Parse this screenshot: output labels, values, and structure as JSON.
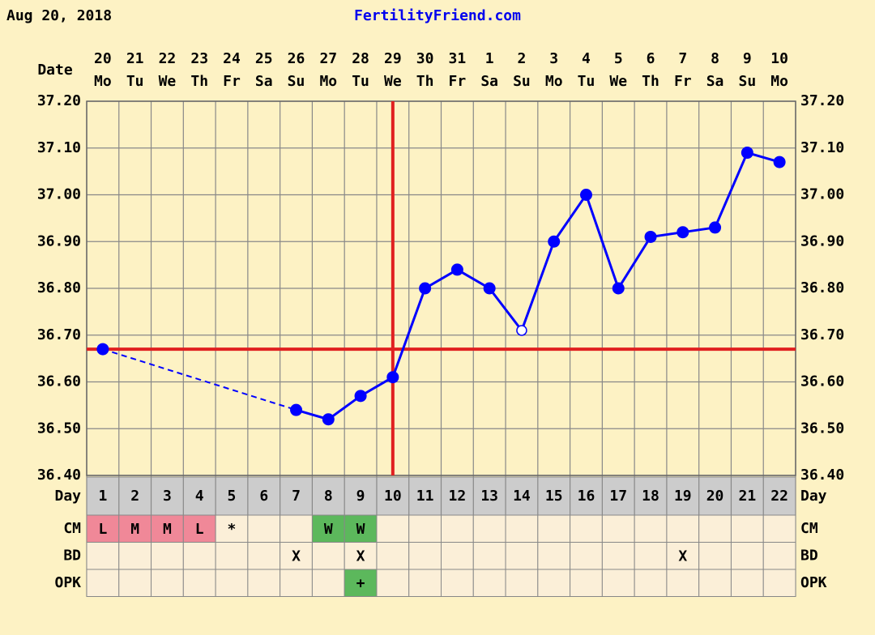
{
  "header": {
    "date": "Aug 20, 2018",
    "site": "FertilityFriend.com"
  },
  "chart_data": {
    "type": "line",
    "x_label": "Date",
    "categories": [
      "20",
      "21",
      "22",
      "23",
      "24",
      "25",
      "26",
      "27",
      "28",
      "29",
      "30",
      "31",
      "1",
      "2",
      "3",
      "4",
      "5",
      "6",
      "7",
      "8",
      "9",
      "10"
    ],
    "weekdays": [
      "Mo",
      "Tu",
      "We",
      "Th",
      "Fr",
      "Sa",
      "Su",
      "Mo",
      "Tu",
      "We",
      "Th",
      "Fr",
      "Sa",
      "Su",
      "Mo",
      "Tu",
      "We",
      "Th",
      "Fr",
      "Sa",
      "Su",
      "Mo"
    ],
    "cycle_day_label": "Day",
    "cycle_days": [
      1,
      2,
      3,
      4,
      5,
      6,
      7,
      8,
      9,
      10,
      11,
      12,
      13,
      14,
      15,
      16,
      17,
      18,
      19,
      20,
      21,
      22
    ],
    "values": [
      36.67,
      null,
      null,
      null,
      null,
      null,
      36.54,
      36.52,
      36.57,
      36.61,
      36.8,
      36.84,
      36.8,
      36.71,
      36.9,
      37.0,
      36.8,
      36.91,
      36.92,
      36.93,
      37.09,
      37.07
    ],
    "hollow": [
      13
    ],
    "color": "#0000ff",
    "coverline": 36.67,
    "ovulation_index": 9,
    "line_color": "#e02020",
    "ylim": [
      36.4,
      37.2
    ],
    "yticks": [
      {
        "value": 36.4,
        "label": "36.40"
      },
      {
        "value": 36.5,
        "label": "36.50"
      },
      {
        "value": 36.6,
        "label": "36.60"
      },
      {
        "value": 36.7,
        "label": "36.70"
      },
      {
        "value": 36.8,
        "label": "36.80"
      },
      {
        "value": 36.9,
        "label": "36.90"
      },
      {
        "value": 37.0,
        "label": "37.00"
      },
      {
        "value": 37.1,
        "label": "37.10"
      },
      {
        "value": 37.2,
        "label": "37.20"
      }
    ],
    "grid": true,
    "rows": [
      {
        "label": "CM",
        "cells": [
          "L",
          "M",
          "M",
          "L",
          "*",
          null,
          null,
          "W",
          "W",
          null,
          null,
          null,
          null,
          null,
          null,
          null,
          null,
          null,
          null,
          null,
          null,
          null
        ],
        "colors": [
          "#f08898",
          "#f08898",
          "#f08898",
          "#f08898",
          null,
          null,
          null,
          "#5cb85c",
          "#5cb85c",
          null,
          null,
          null,
          null,
          null,
          null,
          null,
          null,
          null,
          null,
          null,
          null,
          null
        ]
      },
      {
        "label": "BD",
        "cells": [
          null,
          null,
          null,
          null,
          null,
          null,
          "X",
          null,
          "X",
          null,
          null,
          null,
          null,
          null,
          null,
          null,
          null,
          null,
          "X",
          null,
          null,
          null
        ],
        "colors": [
          null,
          null,
          null,
          null,
          null,
          null,
          null,
          null,
          null,
          null,
          null,
          null,
          null,
          null,
          null,
          null,
          null,
          null,
          null,
          null,
          null,
          null
        ]
      },
      {
        "label": "OPK",
        "cells": [
          null,
          null,
          null,
          null,
          null,
          null,
          null,
          null,
          "+",
          null,
          null,
          null,
          null,
          null,
          null,
          null,
          null,
          null,
          null,
          null,
          null,
          null
        ],
        "colors": [
          null,
          null,
          null,
          null,
          null,
          null,
          null,
          null,
          "#5cb85c",
          null,
          null,
          null,
          null,
          null,
          null,
          null,
          null,
          null,
          null,
          null,
          null,
          null
        ]
      }
    ]
  }
}
